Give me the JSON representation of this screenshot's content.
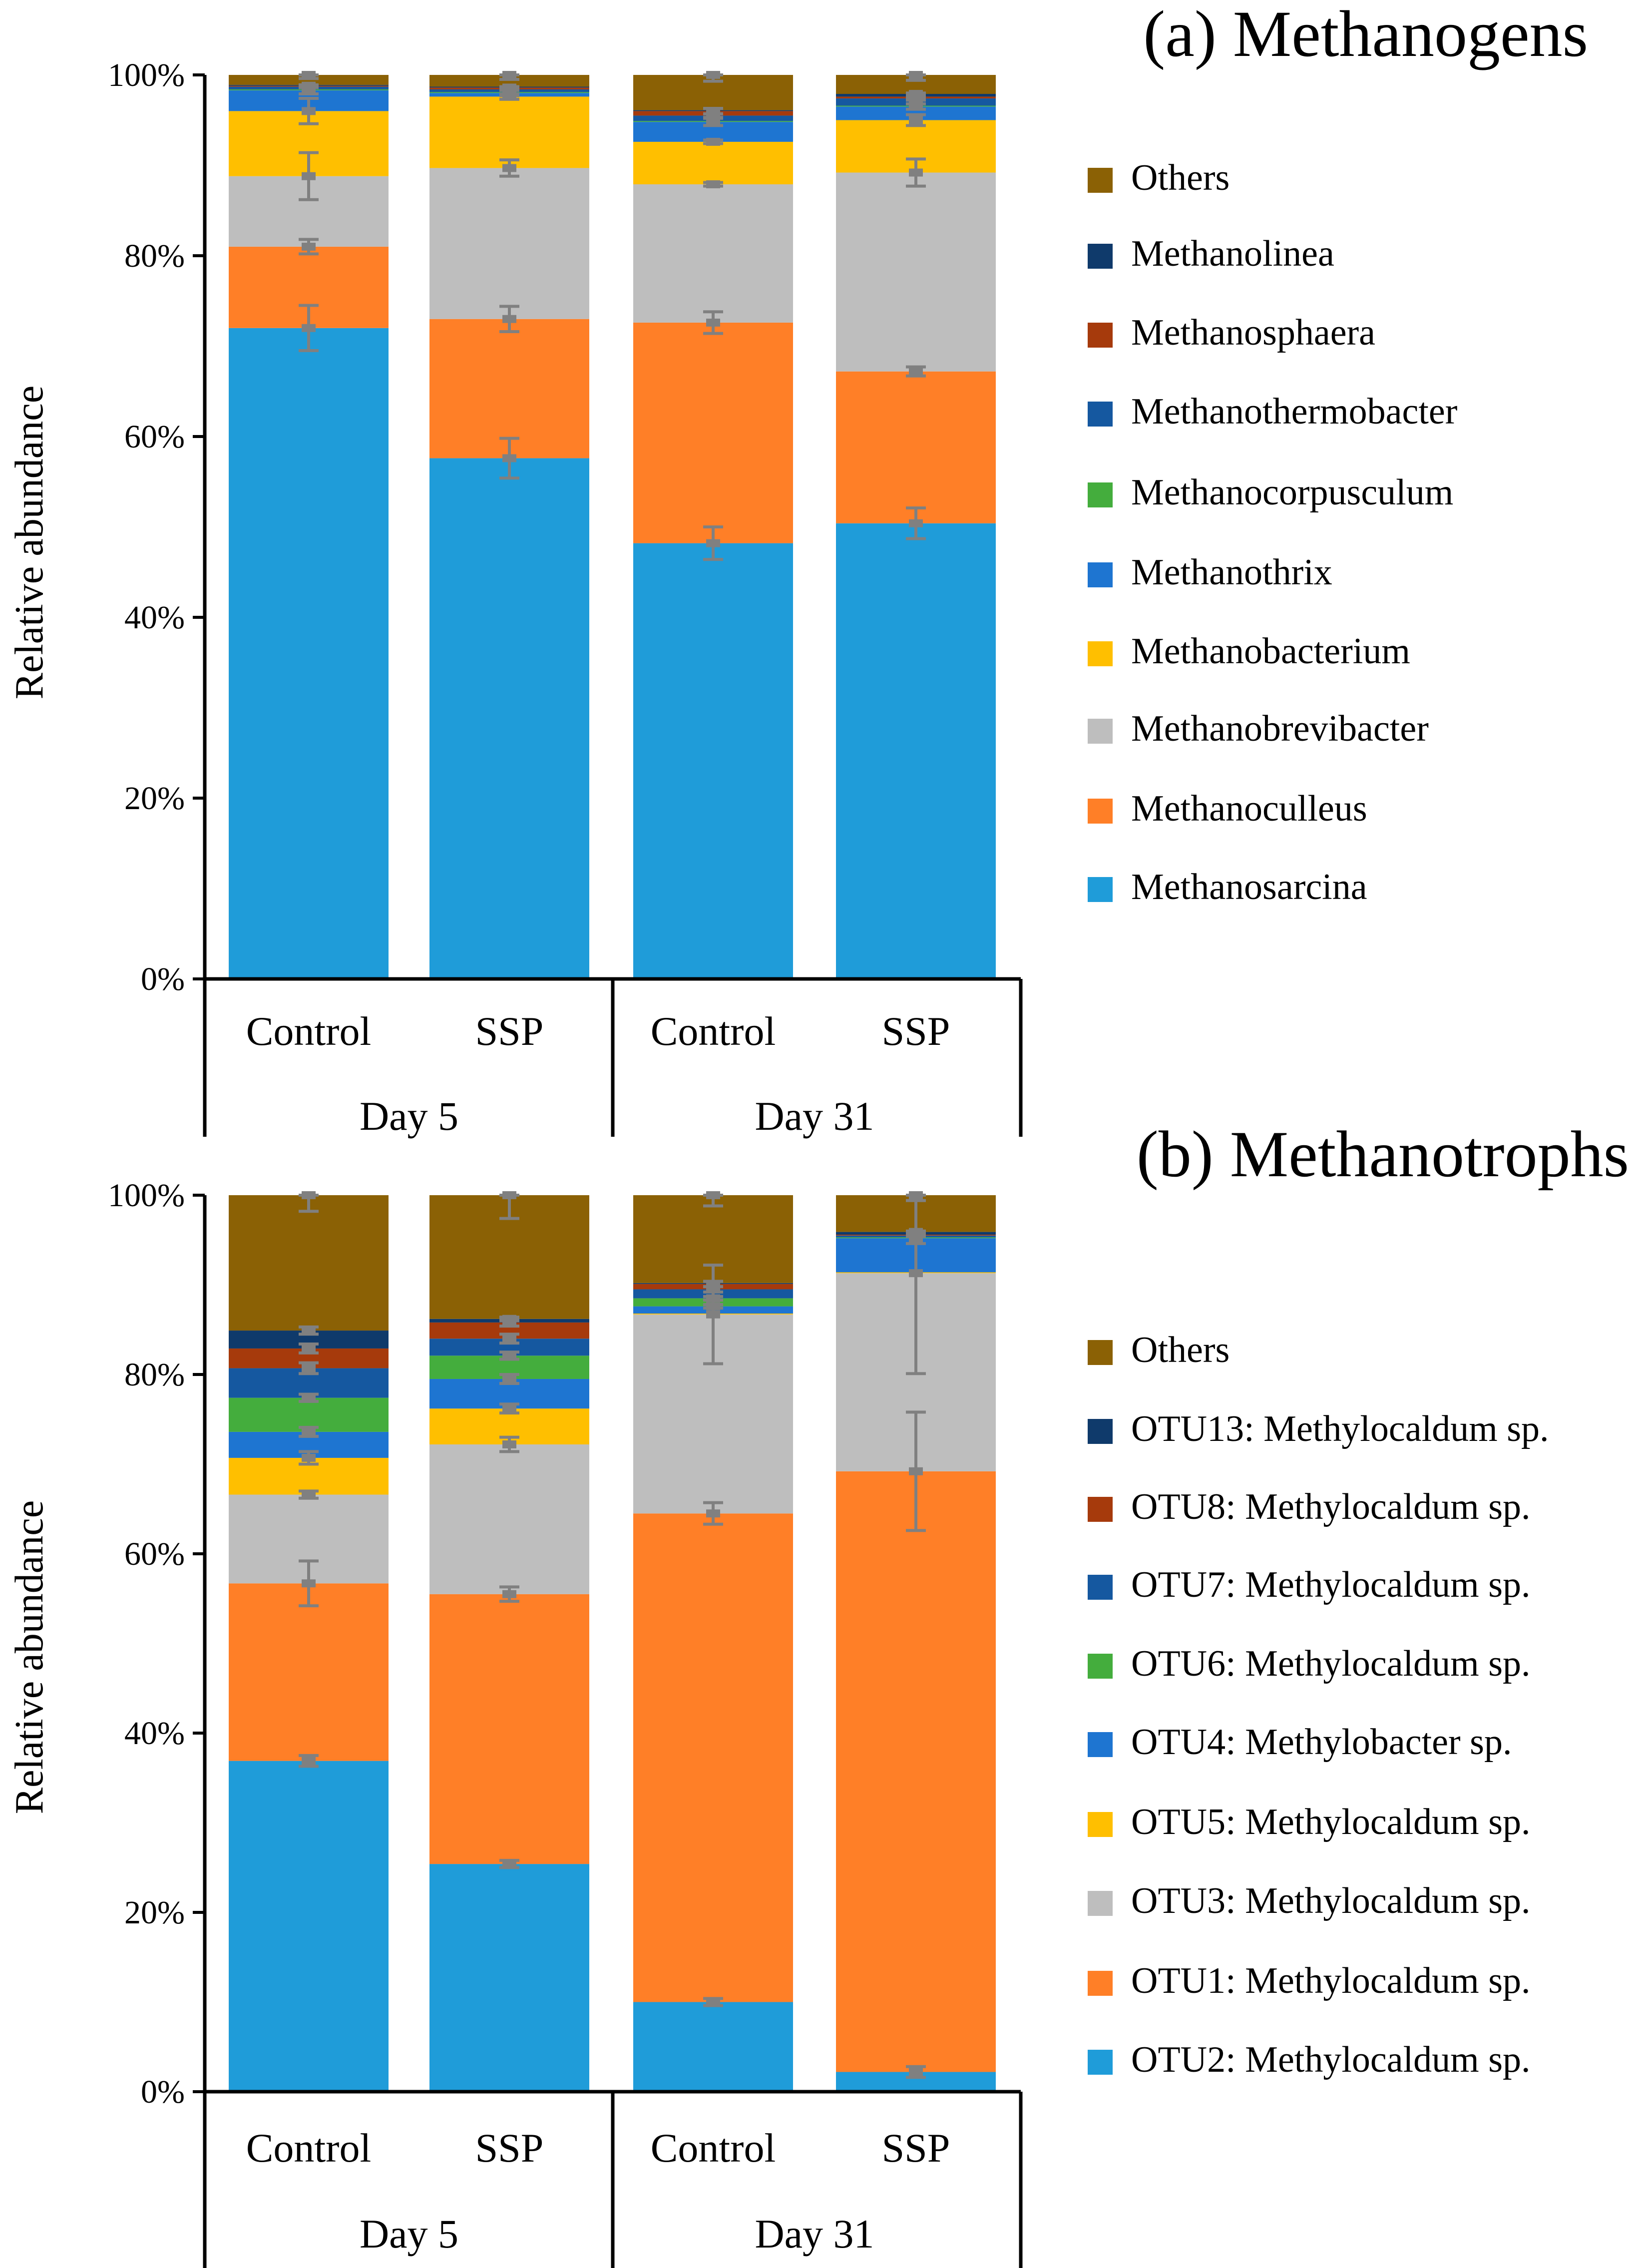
{
  "colors": {
    "Others": "#8B6105",
    "dark_navy": "#0F3A6B",
    "rust": "#A63A0C",
    "mid_blue": "#1558A0",
    "green": "#44AD3D",
    "bright_blue": "#1E75D1",
    "yellow": "#FFBF00",
    "gray": "#BEBEBE",
    "orange": "#FF7F27",
    "sky": "#1F9CD9",
    "error_bar": "#808080"
  },
  "chart_data": [
    {
      "type": "bar",
      "stacked": true,
      "title": "(a) Methanogens",
      "ylabel": "Relative abundance",
      "ylim": [
        0,
        100
      ],
      "yticks": [
        "0%",
        "20%",
        "40%",
        "60%",
        "80%",
        "100%"
      ],
      "ytick_values": [
        0,
        20,
        40,
        60,
        80,
        100
      ],
      "categories": [
        "Control",
        "SSP",
        "Control",
        "SSP"
      ],
      "groups": [
        {
          "label": "Day 5",
          "members": [
            0,
            1
          ]
        },
        {
          "label": "Day 31",
          "members": [
            2,
            3
          ]
        }
      ],
      "legend_order": [
        "Others",
        "Methanolinea",
        "Methanosphaera",
        "Methanothermobacter",
        "Methanocorpusculum",
        "Methanothrix",
        "Methanobacterium",
        "Methanobrevibacter",
        "Methanoculleus",
        "Methanosarcina"
      ],
      "series": [
        {
          "name": "Methanosarcina",
          "color": "#1F9CD9",
          "values": [
            72.0,
            57.6,
            48.2,
            50.4
          ],
          "errors": [
            2.5,
            2.2,
            1.8,
            1.7
          ]
        },
        {
          "name": "Methanoculleus",
          "color": "#FF7F27",
          "values": [
            9.0,
            15.4,
            24.4,
            16.8
          ],
          "errors": [
            0.8,
            1.4,
            1.2,
            0.5
          ]
        },
        {
          "name": "Methanobrevibacter",
          "color": "#BEBEBE",
          "values": [
            7.8,
            16.7,
            15.3,
            22.0
          ],
          "errors": [
            2.6,
            0.9,
            0.2,
            1.5
          ]
        },
        {
          "name": "Methanobacterium",
          "color": "#FFBF00",
          "values": [
            7.2,
            7.9,
            4.7,
            5.8
          ],
          "errors": [
            1.4,
            0.3,
            0.2,
            0.6
          ]
        },
        {
          "name": "Methanothrix",
          "color": "#1E75D1",
          "values": [
            2.3,
            0.4,
            2.2,
            1.5
          ],
          "errors": [
            0.4,
            0.3,
            0.4,
            0.3
          ]
        },
        {
          "name": "Methanocorpusculum",
          "color": "#44AD3D",
          "values": [
            0.1,
            0.1,
            0.1,
            0.1
          ],
          "errors": [
            0,
            0,
            0,
            0
          ]
        },
        {
          "name": "Methanothermobacter",
          "color": "#1558A0",
          "values": [
            0.3,
            0.3,
            0.6,
            0.8
          ],
          "errors": [
            0.1,
            0.1,
            0.2,
            0.2
          ]
        },
        {
          "name": "Methanosphaera",
          "color": "#A63A0C",
          "values": [
            0.1,
            0.2,
            0.5,
            0.2
          ],
          "errors": [
            0.1,
            0.1,
            0.3,
            0.1
          ]
        },
        {
          "name": "Methanolinea",
          "color": "#0F3A6B",
          "values": [
            0.1,
            0.1,
            0.1,
            0.3
          ],
          "errors": [
            0,
            0,
            0,
            0.1
          ]
        },
        {
          "name": "Others",
          "color": "#8B6105",
          "values": [
            1.1,
            1.3,
            3.9,
            2.1
          ],
          "errors": [
            0.4,
            0.5,
            0.7,
            0.6
          ]
        }
      ]
    },
    {
      "type": "bar",
      "stacked": true,
      "title": "(b) Methanotrophs",
      "ylabel": "Relative abundance",
      "ylim": [
        0,
        100
      ],
      "yticks": [
        "0%",
        "20%",
        "40%",
        "60%",
        "80%",
        "100%"
      ],
      "ytick_values": [
        0,
        20,
        40,
        60,
        80,
        100
      ],
      "categories": [
        "Control",
        "SSP",
        "Control",
        "SSP"
      ],
      "groups": [
        {
          "label": "Day 5",
          "members": [
            0,
            1
          ]
        },
        {
          "label": "Day 31",
          "members": [
            2,
            3
          ]
        }
      ],
      "legend_order": [
        "Others",
        "OTU13: Methylocaldum sp.",
        "OTU8: Methylocaldum sp.",
        "OTU7: Methylocaldum sp.",
        "OTU6: Methylocaldum sp.",
        "OTU4: Methylobacter sp.",
        "OTU5: Methylocaldum sp.",
        "OTU3: Methylocaldum sp.",
        "OTU1: Methylocaldum sp.",
        "OTU2: Methylocaldum sp."
      ],
      "series": [
        {
          "name": "OTU2: Methylocaldum sp.",
          "color": "#1F9CD9",
          "values": [
            36.9,
            25.4,
            10.0,
            2.2
          ],
          "errors": [
            0.6,
            0.4,
            0.4,
            0.6
          ]
        },
        {
          "name": "OTU1: Methylocaldum sp.",
          "color": "#FF7F27",
          "values": [
            19.8,
            30.1,
            54.5,
            67.0
          ],
          "errors": [
            2.5,
            0.8,
            1.2,
            6.6
          ]
        },
        {
          "name": "OTU3: Methylocaldum sp.",
          "color": "#BEBEBE",
          "values": [
            9.9,
            16.7,
            22.2,
            22.1
          ],
          "errors": [
            0.4,
            0.8,
            5.5,
            11.2
          ]
        },
        {
          "name": "OTU5: Methylocaldum sp.",
          "color": "#FFBF00",
          "values": [
            4.1,
            4.0,
            0.1,
            0.1
          ],
          "errors": [
            0.7,
            0.5,
            0,
            0
          ]
        },
        {
          "name": "OTU4: Methylobacter sp.",
          "color": "#1E75D1",
          "values": [
            2.9,
            3.3,
            0.8,
            3.8
          ],
          "errors": [
            0.5,
            0.5,
            0.2,
            0.6
          ]
        },
        {
          "name": "OTU6: Methylocaldum sp.",
          "color": "#44AD3D",
          "values": [
            3.8,
            2.6,
            0.9,
            0.1
          ],
          "errors": [
            0.4,
            0.4,
            0.2,
            0
          ]
        },
        {
          "name": "OTU7: Methylocaldum sp.",
          "color": "#1558A0",
          "values": [
            3.3,
            1.9,
            1.0,
            0.2
          ],
          "errors": [
            0.6,
            0.5,
            0.3,
            0.1
          ]
        },
        {
          "name": "OTU8: Methylocaldum sp.",
          "color": "#A63A0C",
          "values": [
            2.2,
            1.8,
            0.6,
            0.1
          ],
          "errors": [
            0.5,
            0.4,
            0.3,
            0
          ]
        },
        {
          "name": "OTU13: Methylocaldum sp.",
          "color": "#0F3A6B",
          "values": [
            2.0,
            0.4,
            0.1,
            0.3
          ],
          "errors": [
            0.4,
            0.2,
            0,
            0.1
          ]
        },
        {
          "name": "Others",
          "color": "#8B6105",
          "values": [
            15.1,
            13.8,
            9.8,
            4.1
          ],
          "errors": [
            1.8,
            2.6,
            1.2,
            0.6
          ]
        }
      ]
    }
  ]
}
